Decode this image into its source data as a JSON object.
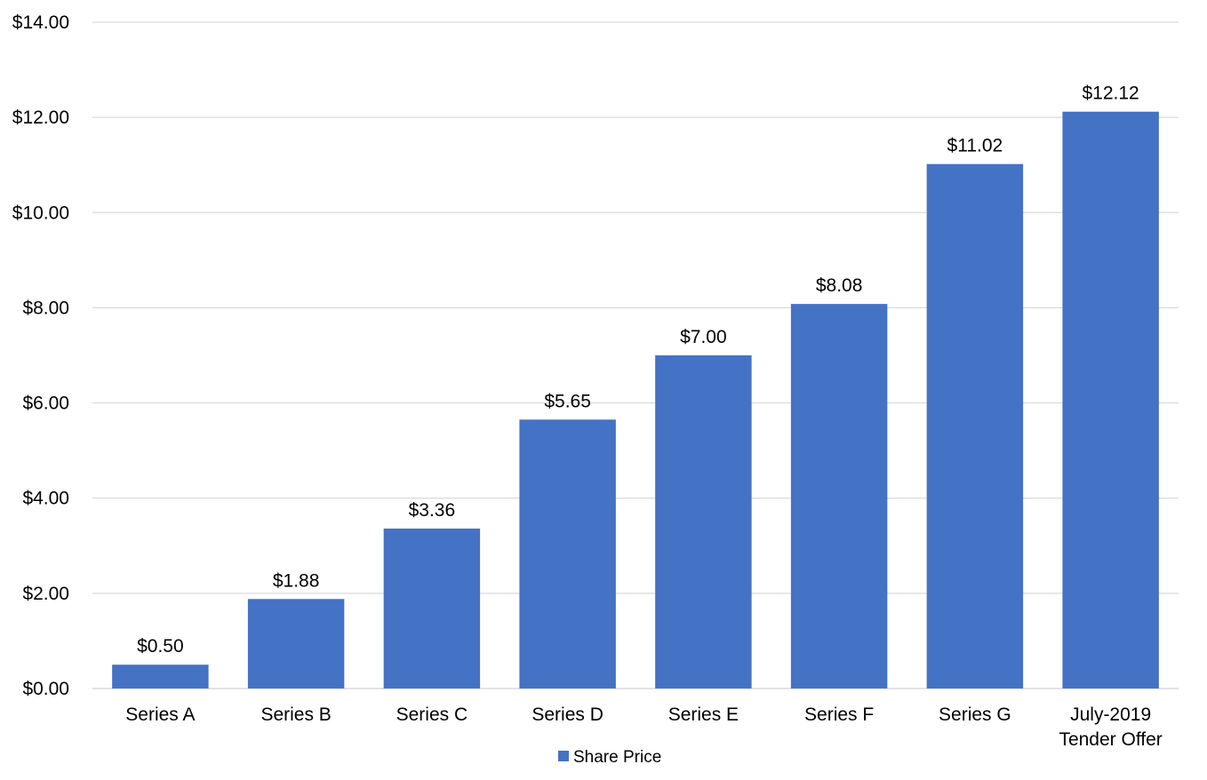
{
  "chart_data": {
    "type": "bar",
    "title": "",
    "xlabel": "",
    "ylabel": "",
    "categories": [
      [
        "Series A"
      ],
      [
        "Series B"
      ],
      [
        "Series C"
      ],
      [
        "Series D"
      ],
      [
        "Series E"
      ],
      [
        "Series F"
      ],
      [
        "Series G"
      ],
      [
        "July-2019",
        "Tender Offer"
      ]
    ],
    "series": [
      {
        "name": "Share Price",
        "values": [
          0.5,
          1.88,
          3.36,
          5.65,
          7.0,
          8.08,
          11.02,
          12.12
        ],
        "data_labels": [
          "$0.50",
          "$1.88",
          "$3.36",
          "$5.65",
          "$7.00",
          "$8.08",
          "$11.02",
          "$12.12"
        ],
        "color": "#4472C4"
      }
    ],
    "ylim": [
      0,
      14
    ],
    "yticks": [
      0,
      2,
      4,
      6,
      8,
      10,
      12,
      14
    ],
    "ytick_labels": [
      "$0.00",
      "$2.00",
      "$4.00",
      "$6.00",
      "$8.00",
      "$10.00",
      "$12.00",
      "$14.00"
    ],
    "grid": true,
    "gridline_color": "#D9D9D9",
    "legend": {
      "position": "bottom",
      "entries": [
        "Share Price"
      ]
    }
  }
}
